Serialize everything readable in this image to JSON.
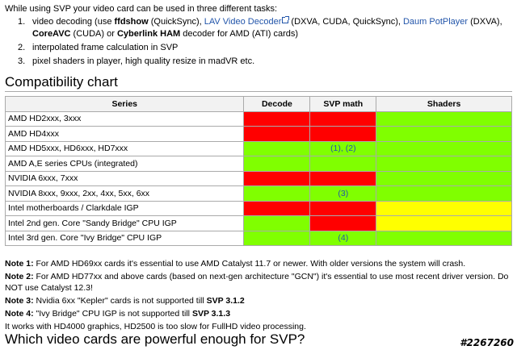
{
  "intro": "While using SVP your video card can be used in three different tasks:",
  "tasks": [
    {
      "num": "1.",
      "pre": "video decoding (use ",
      "ffdshow": "ffdshow",
      "after_ffdshow": " (QuickSync), ",
      "lav_link": "LAV Video Decoder",
      "after_lav": " (DXVA, CUDA, QuickSync), ",
      "potplayer_link": "Daum PotPlayer",
      "after_pot": " (DXVA), ",
      "coreavc": "CoreAVC",
      "after_coreavc": " (CUDA) or ",
      "cyberlink": "Cyberlink HAM",
      "post": " decoder for AMD (ATI) cards)"
    },
    {
      "num": "2.",
      "text": "interpolated frame calculation in SVP"
    },
    {
      "num": "3.",
      "text": "pixel shaders in player, high quality resize in madVR etc."
    }
  ],
  "section_title": "Compatibility chart",
  "table": {
    "headers": [
      "Series",
      "Decode",
      "SVP math",
      "Shaders"
    ],
    "rows": [
      {
        "series": "AMD HD2xxx, 3xxx",
        "decode": "red",
        "svp": "red",
        "shaders": "green",
        "svp_text": ""
      },
      {
        "series": "AMD HD4xxx",
        "decode": "red",
        "svp": "red",
        "shaders": "green",
        "svp_text": ""
      },
      {
        "series": "AMD HD5xxx, HD6xxx, HD7xxx",
        "decode": "green",
        "svp": "green",
        "shaders": "green",
        "svp_text": "(1), (2)"
      },
      {
        "series": "AMD A,E series CPUs (integrated)",
        "decode": "green",
        "svp": "green",
        "shaders": "green",
        "svp_text": ""
      },
      {
        "series": "NVIDIA 6xxx, 7xxx",
        "decode": "red",
        "svp": "red",
        "shaders": "green",
        "svp_text": ""
      },
      {
        "series": "NVIDIA 8xxx, 9xxx, 2xx, 4xx, 5xx, 6xx",
        "decode": "green",
        "svp": "green",
        "shaders": "green",
        "svp_text": "(3)"
      },
      {
        "series": "Intel motherboards / Clarkdale IGP",
        "decode": "red",
        "svp": "red",
        "shaders": "yellow",
        "svp_text": ""
      },
      {
        "series": "Intel 2nd gen. Core \"Sandy Bridge\" CPU IGP",
        "decode": "green",
        "svp": "red",
        "shaders": "yellow",
        "svp_text": ""
      },
      {
        "series": "Intel 3rd gen. Core \"Ivy Bridge\" CPU IGP",
        "decode": "green",
        "svp": "green",
        "shaders": "green",
        "svp_text": "(4)"
      }
    ]
  },
  "colors": {
    "red": "#ff0000",
    "green": "#80ff00",
    "yellow": "#ffff00",
    "link": "#2255aa"
  },
  "notes": [
    {
      "label": "Note 1:",
      "text": " For AMD HD69xx cards it's essential to use AMD Catalyst 11.7 or newer. With older versions the system will crash."
    },
    {
      "label": "Note 2:",
      "text": " For AMD HD77xx and above cards (based on next-gen architecture \"GCN\") it's essential to use most recent driver version. Do NOT use Catalyst 12.3!"
    },
    {
      "label": "Note 3:",
      "text": " Nvidia 6xx \"Kepler\" cards is not supported till ",
      "bold_tail": "SVP 3.1.2"
    },
    {
      "label": "Note 4:",
      "text": " \"Ivy Bridge\" CPU IGP is not supported till ",
      "bold_tail": "SVP 3.1.3"
    }
  ],
  "note_extra": "It works with HD4000 graphics, HD2500 is too slow for FullHD video processing.",
  "section2_title": "Which video cards are powerful enough for SVP?",
  "watermark": "#2267260"
}
